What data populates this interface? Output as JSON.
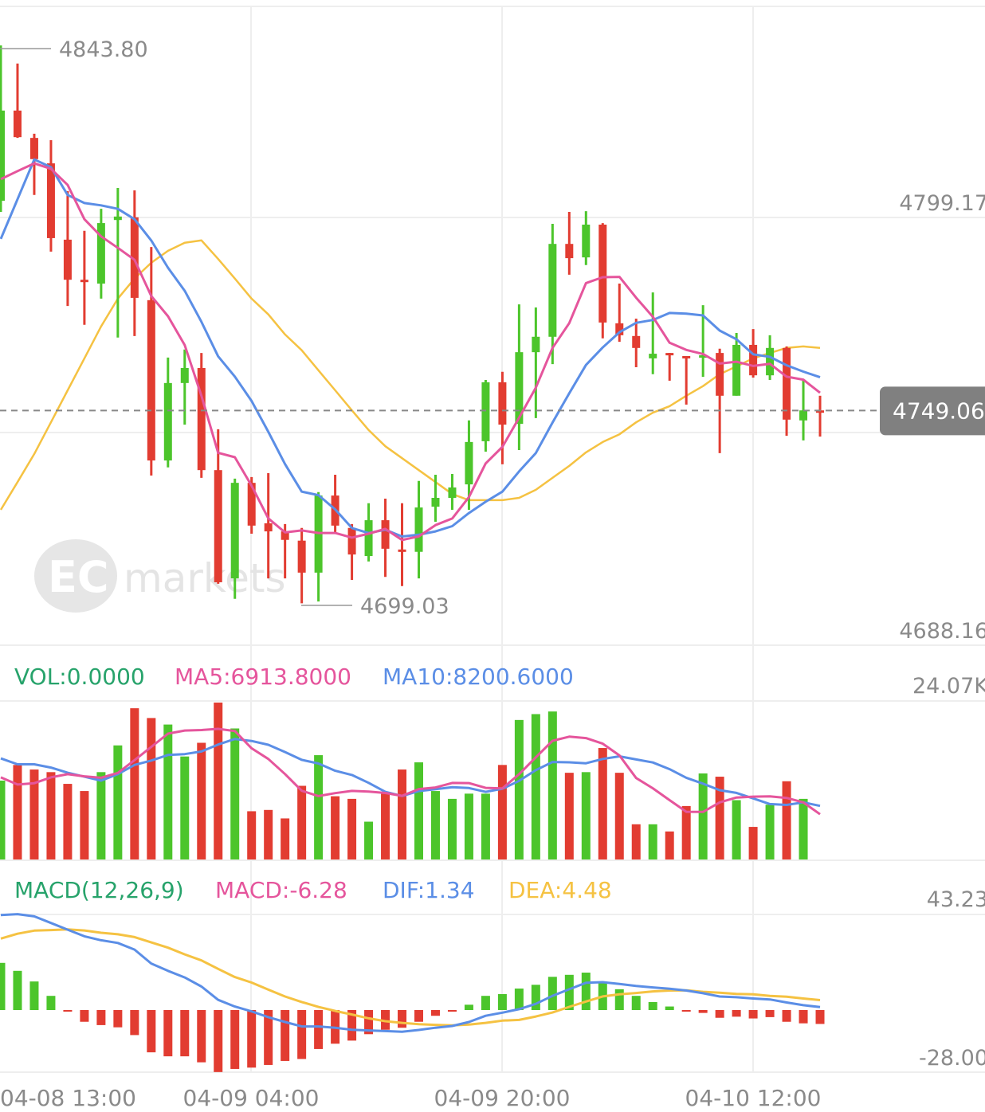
{
  "chart_data": [
    {
      "type": "candlestick",
      "title": "",
      "x_tick_labels": [
        "04-08 13:00",
        "04-09 04:00",
        "04-09 20:00",
        "04-10 12:00"
      ],
      "y_tick_labels": [
        "4799.17",
        "4688.16"
      ],
      "ylim": [
        4688.16,
        4853.9
      ],
      "max_label": "4843.80",
      "min_label": "4699.03",
      "last_price": "4749.06",
      "last_price_value": 4749.06,
      "watermark": "EC markets",
      "candles_ohlc": [
        [
          4803.5,
          4843.8,
          4800.6,
          4826.9
        ],
        [
          4826.9,
          4839.1,
          4819.8,
          4820.0
        ],
        [
          4819.8,
          4820.9,
          4805.0,
          4814.3
        ],
        [
          4813.2,
          4819.2,
          4790.3,
          4793.8
        ],
        [
          4793.4,
          4806.0,
          4776.2,
          4783.0
        ],
        [
          4783.0,
          4795.7,
          4771.3,
          4782.4
        ],
        [
          4782.0,
          4801.4,
          4778.1,
          4797.7
        ],
        [
          4798.5,
          4806.8,
          4768.0,
          4799.4
        ],
        [
          4799.2,
          4806.2,
          4768.4,
          4778.3
        ],
        [
          4777.7,
          4791.5,
          4732.2,
          4736.1
        ],
        [
          4736.1,
          4762.8,
          4734.3,
          4756.2
        ],
        [
          4756.2,
          4764.9,
          4745.4,
          4760.1
        ],
        [
          4760.1,
          4764.0,
          4731.6,
          4733.6
        ],
        [
          4733.6,
          4744.2,
          4704.1,
          4704.5
        ],
        [
          4705.5,
          4731.4,
          4700.2,
          4730.3
        ],
        [
          4730.3,
          4731.8,
          4717.1,
          4719.2
        ],
        [
          4719.8,
          4732.8,
          4705.5,
          4717.7
        ],
        [
          4717.7,
          4719.6,
          4705.5,
          4715.5
        ],
        [
          4715.3,
          4718.6,
          4699.03,
          4707.0
        ],
        [
          4707.0,
          4727.9,
          4699.5,
          4727.0
        ],
        [
          4727.0,
          4732.4,
          4717.1,
          4719.2
        ],
        [
          4718.6,
          4719.6,
          4705.1,
          4711.7
        ],
        [
          4711.3,
          4725.0,
          4709.9,
          4720.6
        ],
        [
          4720.6,
          4726.2,
          4705.9,
          4713.2
        ],
        [
          4713.0,
          4725.0,
          4703.5,
          4712.6
        ],
        [
          4712.4,
          4730.8,
          4705.5,
          4723.9
        ],
        [
          4724.1,
          4732.4,
          4720.2,
          4726.4
        ],
        [
          4726.4,
          4732.6,
          4723.3,
          4729.1
        ],
        [
          4729.9,
          4746.5,
          4723.3,
          4740.9
        ],
        [
          4741.1,
          4757.0,
          4738.4,
          4756.4
        ],
        [
          4756.4,
          4759.1,
          4735.1,
          4745.4
        ],
        [
          4745.6,
          4776.6,
          4738.8,
          4764.2
        ],
        [
          4764.2,
          4775.8,
          4747.1,
          4768.2
        ],
        [
          4768.2,
          4797.5,
          4761.1,
          4792.3
        ],
        [
          4792.3,
          4800.6,
          4784.3,
          4788.6
        ],
        [
          4788.8,
          4800.8,
          4786.8,
          4797.3
        ],
        [
          4797.3,
          4797.7,
          4767.8,
          4771.9
        ],
        [
          4771.7,
          4782.0,
          4766.9,
          4768.6
        ],
        [
          4768.4,
          4772.9,
          4760.3,
          4765.3
        ],
        [
          4762.6,
          4779.7,
          4758.5,
          4763.8
        ],
        [
          4764.0,
          4764.0,
          4756.8,
          4763.6
        ],
        [
          4763.2,
          4763.2,
          4750.6,
          4762.6
        ],
        [
          4762.8,
          4776.4,
          4757.8,
          4763.4
        ],
        [
          4764.0,
          4765.1,
          4738.0,
          4752.9
        ],
        [
          4752.9,
          4769.2,
          4752.9,
          4766.1
        ],
        [
          4766.1,
          4770.2,
          4757.6,
          4758.2
        ],
        [
          4758.2,
          4768.6,
          4757.0,
          4765.3
        ],
        [
          4765.3,
          4765.7,
          4742.5,
          4746.7
        ],
        [
          4746.5,
          4756.8,
          4741.3,
          4749.1
        ],
        [
          4749.1,
          4752.9,
          4742.3,
          4749.06
        ]
      ],
      "ma5_head": [
        4809.1,
        4811.2,
        4813.2,
        4811.8
      ],
      "ma10_head": [
        4793.6,
        4803.9,
        4814.2,
        4812.2,
        4805.0,
        4802.9,
        4802.3,
        4801.4,
        4798.7
      ],
      "ma30": [
        4723.3,
        4730.5,
        4737.8,
        4746.0,
        4754.3,
        4762.6,
        4770.9,
        4778.1,
        4783.3,
        4787.4,
        4790.5,
        4792.6,
        4793.2,
        4788.4,
        4783.3,
        4778.1,
        4774.0,
        4768.8,
        4764.7,
        4759.5,
        4754.3,
        4749.1,
        4744.0,
        4739.8,
        4736.7,
        4733.6,
        4730.5,
        4727.4,
        4725.8,
        4725.8,
        4725.8,
        4726.4,
        4728.5,
        4731.6,
        4734.7,
        4738.2,
        4740.9,
        4742.9,
        4746.0,
        4748.5,
        4750.2,
        4752.9,
        4755.4,
        4758.5,
        4760.5,
        4762.6,
        4764.0,
        4765.3,
        4765.7,
        4765.3
      ]
    },
    {
      "type": "bar",
      "title": "VOL",
      "y_tick_labels": [
        "24.07K"
      ],
      "ylim": [
        0,
        24070
      ],
      "legend": {
        "vol": "VOL:0.0000",
        "ma5": "MA5:6913.8000",
        "ma10": "MA10:8200.6000"
      },
      "volumes": [
        12100,
        14500,
        13800,
        13400,
        11600,
        10500,
        13400,
        17500,
        23200,
        21700,
        20700,
        15800,
        17900,
        24070,
        20100,
        7400,
        7600,
        6300,
        11300,
        16000,
        9700,
        9300,
        5800,
        10200,
        13800,
        14900,
        10500,
        9300,
        10100,
        10100,
        14500,
        21400,
        22300,
        22700,
        13300,
        13400,
        17100,
        13300,
        5400,
        5400,
        4300,
        8200,
        13200,
        12700,
        9100,
        5000,
        8400,
        12000,
        9300,
        0
      ],
      "ma5_head": [
        12600,
        11500,
        11700,
        12600
      ],
      "ma10_head": [
        15500,
        14600,
        14600,
        14100,
        13300,
        12700,
        12100,
        13100,
        14500
      ]
    },
    {
      "type": "bar",
      "title": "MACD(12,26,9)",
      "y_tick_labels": [
        "43.23",
        "-28.00"
      ],
      "ylim": [
        -28.0,
        43.23
      ],
      "legend": {
        "name": "MACD(12,26,9)",
        "macd": "MACD:-6.28",
        "dif": "DIF:1.34",
        "dea": "DEA:4.48"
      },
      "macd": [
        21.3,
        17.7,
        12.9,
        6.4,
        -0.3,
        -5.3,
        -6.8,
        -7.8,
        -11.3,
        -19.1,
        -20.9,
        -20.9,
        -23.6,
        -28.0,
        -26.6,
        -26.0,
        -24.8,
        -23.0,
        -22.1,
        -17.6,
        -15.2,
        -13.8,
        -10.9,
        -8.9,
        -8.0,
        -5.3,
        -2.6,
        -0.5,
        2.4,
        6.4,
        7.2,
        9.7,
        11.4,
        15.0,
        15.9,
        16.9,
        12.9,
        9.4,
        6.4,
        3.6,
        1.6,
        -0.2,
        -1.3,
        -3.5,
        -3.0,
        -3.8,
        -3.2,
        -5.3,
        -6.0,
        -6.28
      ],
      "dif": [
        42.9,
        43.3,
        42.3,
        39.3,
        36.3,
        33.3,
        31.5,
        30.3,
        27.3,
        21.0,
        17.7,
        14.7,
        10.6,
        4.6,
        1.6,
        -0.6,
        -3.2,
        -5.4,
        -7.4,
        -7.4,
        -8.0,
        -8.9,
        -9.2,
        -9.5,
        -9.8,
        -9.0,
        -8.0,
        -7.2,
        -5.4,
        -2.6,
        -1.2,
        0.4,
        2.8,
        6.4,
        9.4,
        12.3,
        12.6,
        11.8,
        10.9,
        10.2,
        9.6,
        8.8,
        7.6,
        6.1,
        5.8,
        5.2,
        4.8,
        3.4,
        2.2,
        1.34
      ]
    }
  ],
  "colors": {
    "up": "#4cc52b",
    "down": "#e23c31",
    "ma5": "#e5559c",
    "ma10": "#5b8ee6",
    "ma30": "#f5c242",
    "legend_green": "#27a36b",
    "grid": "#eeeeee",
    "badge": "#808080"
  }
}
